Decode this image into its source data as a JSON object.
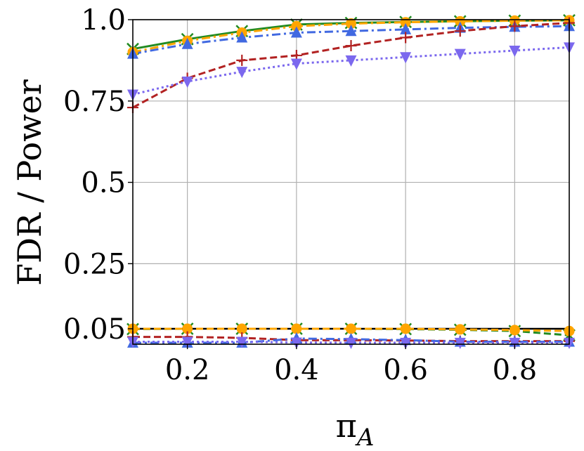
{
  "chart_data": {
    "type": "line",
    "title": "",
    "xlabel": "π_A",
    "xlabel_main": "π",
    "xlabel_sub": "A",
    "ylabel": "FDR / Power",
    "xlim": [
      0.1,
      0.9
    ],
    "ylim": [
      0.0,
      1.0
    ],
    "xticks": [
      0.2,
      0.4,
      0.6,
      0.8
    ],
    "xtick_labels": [
      "0.2",
      "0.4",
      "0.6",
      "0.8"
    ],
    "yticks": [
      0.05,
      0.25,
      0.5,
      0.75,
      1.0
    ],
    "ytick_labels": [
      "0.05",
      "0.25",
      "0.5",
      "0.75",
      "1.0"
    ],
    "grid": true,
    "legend": false,
    "reference_line": {
      "y": 0.05,
      "color": "#000000"
    },
    "x": [
      0.1,
      0.2,
      0.3,
      0.4,
      0.5,
      0.6,
      0.7,
      0.8,
      0.9
    ],
    "series": [
      {
        "metric": "power",
        "color": "#228b22",
        "dash": "solid",
        "marker": "x",
        "values": [
          0.91,
          0.94,
          0.965,
          0.985,
          0.99,
          0.993,
          0.995,
          0.997,
          0.998
        ]
      },
      {
        "metric": "power",
        "color": "#ffa500",
        "dash": "dashdot",
        "marker": "circle",
        "values": [
          0.9,
          0.935,
          0.96,
          0.98,
          0.988,
          0.992,
          0.995,
          0.997,
          0.998
        ]
      },
      {
        "metric": "power",
        "color": "#4169e1",
        "dash": "dashdot",
        "marker": "triangle-up",
        "values": [
          0.895,
          0.925,
          0.945,
          0.96,
          0.965,
          0.97,
          0.975,
          0.978,
          0.98
        ]
      },
      {
        "metric": "power",
        "color": "#b22222",
        "dash": "dashed",
        "marker": "plus",
        "values": [
          0.73,
          0.82,
          0.875,
          0.89,
          0.92,
          0.945,
          0.965,
          0.98,
          0.99
        ]
      },
      {
        "metric": "power",
        "color": "#7b68ee",
        "dash": "dotted",
        "marker": "triangle-down",
        "values": [
          0.77,
          0.81,
          0.84,
          0.865,
          0.875,
          0.885,
          0.895,
          0.905,
          0.915
        ]
      },
      {
        "metric": "fdr",
        "color": "#228b22",
        "dash": "dashed",
        "marker": "x",
        "values": [
          0.049,
          0.05,
          0.05,
          0.05,
          0.05,
          0.049,
          0.047,
          0.043,
          0.03
        ]
      },
      {
        "metric": "fdr",
        "color": "#ffa500",
        "dash": "dashed",
        "marker": "circle",
        "values": [
          0.05,
          0.05,
          0.05,
          0.05,
          0.05,
          0.05,
          0.048,
          0.046,
          0.043
        ]
      },
      {
        "metric": "fdr",
        "color": "#b22222",
        "dash": "dashed",
        "marker": "plus",
        "values": [
          0.025,
          0.025,
          0.022,
          0.015,
          0.015,
          0.014,
          0.012,
          0.012,
          0.012
        ]
      },
      {
        "metric": "fdr",
        "color": "#4169e1",
        "dash": "dashdot",
        "marker": "triangle-up",
        "values": [
          0.007,
          0.007,
          0.007,
          0.02,
          0.018,
          0.015,
          0.01,
          0.01,
          0.01
        ]
      },
      {
        "metric": "fdr",
        "color": "#7b68ee",
        "dash": "dotted",
        "marker": "triangle-down",
        "values": [
          0.01,
          0.01,
          0.01,
          0.008,
          0.007,
          0.007,
          0.007,
          0.007,
          0.007
        ]
      }
    ]
  }
}
